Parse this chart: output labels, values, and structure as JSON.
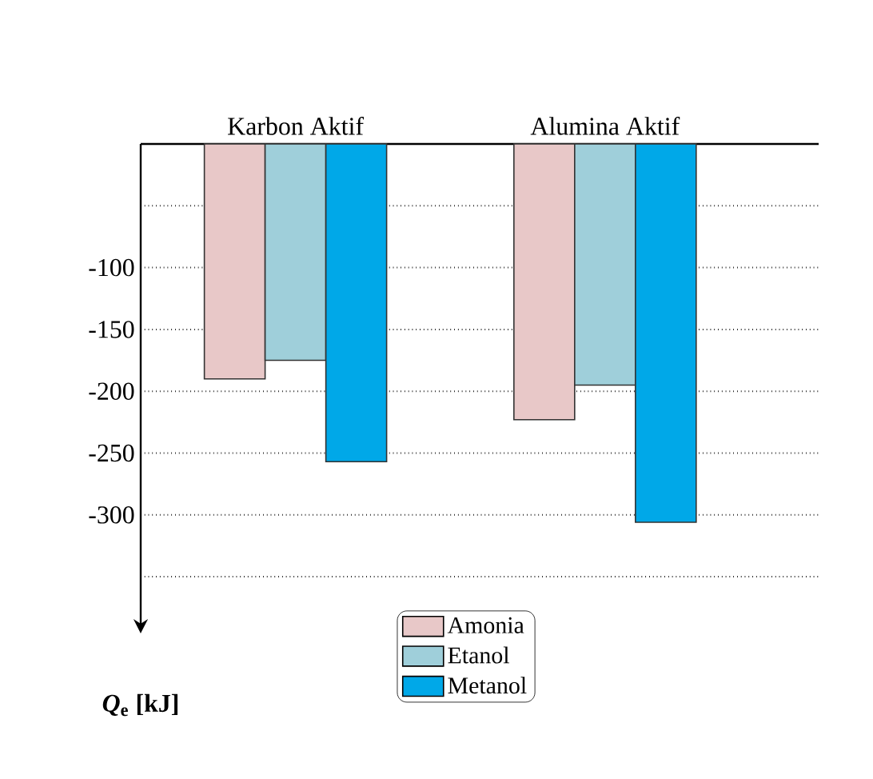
{
  "chart_data": {
    "type": "bar",
    "ylabel": "*Q*$_{e}$ [kJ]",
    "categories": [
      "Karbon Aktif",
      "Alumina Aktif"
    ],
    "series": [
      {
        "name": "Amonia",
        "color": "#e8c8c8",
        "values": [
          -190,
          -223
        ]
      },
      {
        "name": "Etanol",
        "color": "#9fcfda",
        "values": [
          -175,
          -195
        ]
      },
      {
        "name": "Metanol",
        "color": "#00a8e8",
        "values": [
          -257,
          -306
        ]
      }
    ],
    "ylim": [
      -370,
      0
    ],
    "yticks": [
      {
        "value": 0,
        "label": null
      },
      {
        "value": -50,
        "label": null
      },
      -100,
      -150,
      -200,
      -250,
      -300,
      {
        "value": -350,
        "label": null
      }
    ],
    "grid": "y",
    "legend": "bottom"
  }
}
